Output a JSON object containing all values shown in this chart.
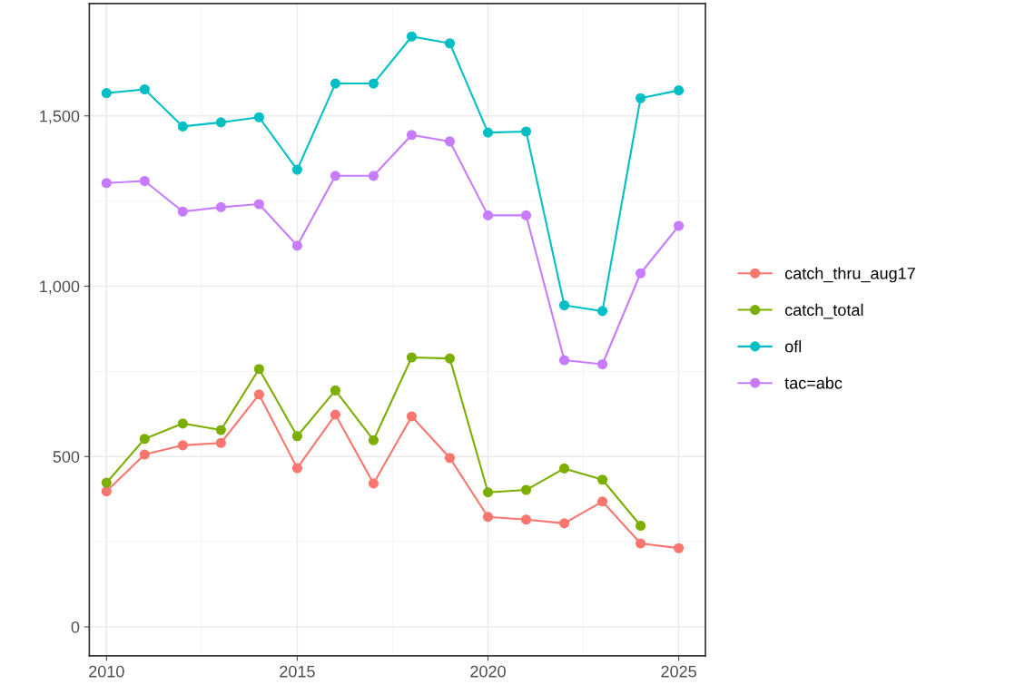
{
  "chart_data": {
    "type": "line",
    "x": [
      2010,
      2011,
      2012,
      2013,
      2014,
      2015,
      2016,
      2017,
      2018,
      2019,
      2020,
      2021,
      2022,
      2023,
      2024,
      2025
    ],
    "series": [
      {
        "name": "catch_thru_aug17",
        "color": "#f8766d",
        "values": [
          398,
          506,
          533,
          540,
          682,
          466,
          623,
          421,
          618,
          496,
          323,
          315,
          304,
          368,
          245,
          231
        ]
      },
      {
        "name": "catch_total",
        "color": "#7cae00",
        "values": [
          423,
          552,
          597,
          578,
          757,
          560,
          694,
          548,
          791,
          788,
          395,
          402,
          465,
          432,
          297,
          null
        ]
      },
      {
        "name": "ofl",
        "color": "#00bfc4",
        "values": [
          1567,
          1578,
          1469,
          1481,
          1496,
          1342,
          1595,
          1595,
          1733,
          1713,
          1451,
          1454,
          944,
          927,
          1552,
          1575
        ]
      },
      {
        "name": "tac=abc",
        "color": "#c77cff",
        "values": [
          1303,
          1309,
          1219,
          1232,
          1241,
          1119,
          1324,
          1324,
          1444,
          1425,
          1208,
          1208,
          783,
          771,
          1038,
          1177
        ]
      }
    ],
    "xlim": [
      2009.55,
      2025.7
    ],
    "xticks": [
      2010,
      2015,
      2020,
      2025
    ],
    "ylim": [
      -85,
      1830
    ],
    "yticks": [
      0,
      500,
      {
        "value": 1000,
        "label": "1,000"
      },
      {
        "value": 1500,
        "label": "1,500"
      }
    ],
    "grid": true,
    "legend": "right",
    "marker": "circle",
    "line_style": "solid"
  }
}
